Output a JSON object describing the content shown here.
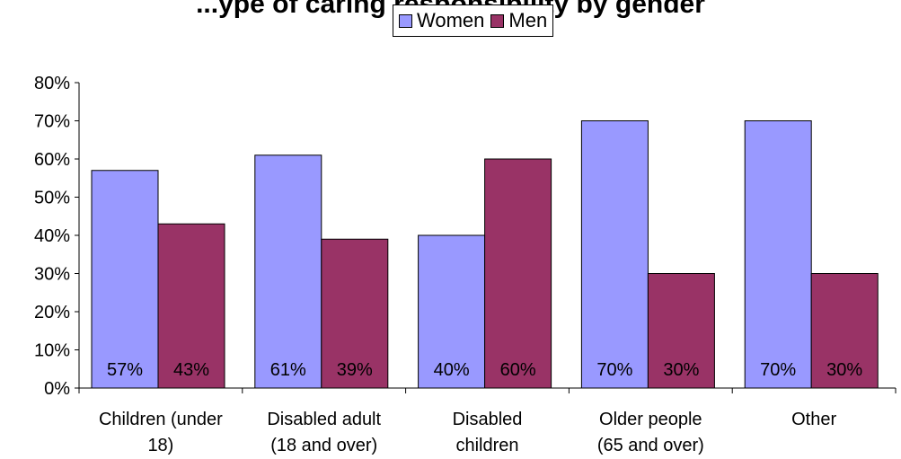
{
  "chart_data": {
    "type": "bar",
    "title": "...ype of caring responsibility by gender",
    "categories": [
      [
        "Children (under",
        "18)"
      ],
      [
        "Disabled adult",
        "(18 and over)"
      ],
      [
        "Disabled",
        "children"
      ],
      [
        "Older people",
        "(65 and over)"
      ],
      [
        "Other"
      ]
    ],
    "series": [
      {
        "name": "Women",
        "color": "#9999ff",
        "values": [
          57,
          61,
          40,
          70,
          70
        ],
        "labels": [
          "57%",
          "61%",
          "40%",
          "70%",
          "70%"
        ]
      },
      {
        "name": "Men",
        "color": "#993366",
        "values": [
          43,
          39,
          60,
          30,
          30
        ],
        "labels": [
          "43%",
          "39%",
          "60%",
          "30%",
          "30%"
        ]
      }
    ],
    "y_ticks": [
      "0%",
      "10%",
      "20%",
      "30%",
      "40%",
      "50%",
      "60%",
      "70%",
      "80%"
    ],
    "ylim": [
      0,
      80
    ],
    "grid": false,
    "legend_position": "top-center"
  }
}
